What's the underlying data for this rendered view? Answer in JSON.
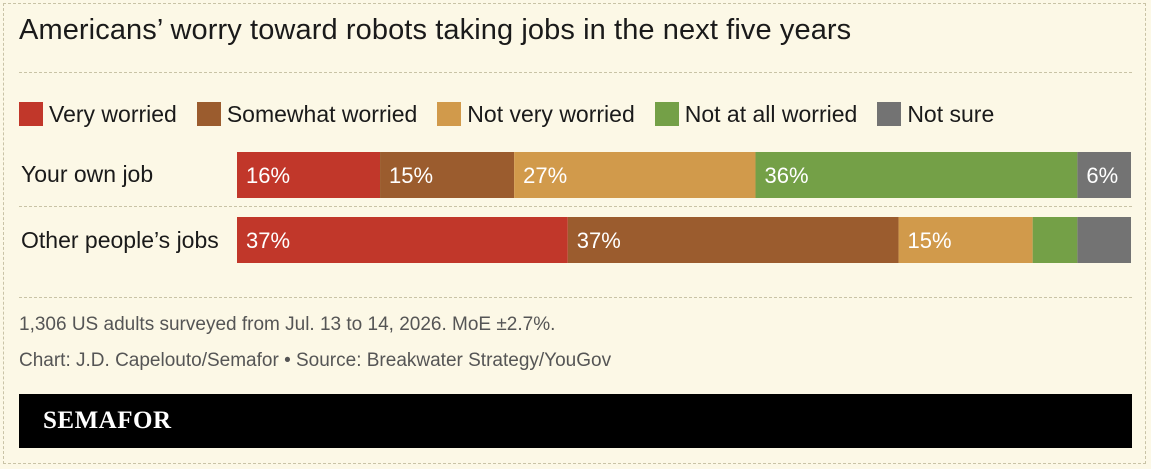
{
  "title": "Americans’ worry toward robots taking jobs in the next five years",
  "legend": [
    {
      "label": "Very worried",
      "color": "#c1372a"
    },
    {
      "label": "Somewhat worried",
      "color": "#9b5c2e"
    },
    {
      "label": "Not very worried",
      "color": "#d19a4b"
    },
    {
      "label": "Not at all worried",
      "color": "#74a047"
    },
    {
      "label": "Not sure",
      "color": "#737373"
    }
  ],
  "chart_data": {
    "type": "bar",
    "orientation": "horizontal",
    "stacked": true,
    "categories": [
      "Your own job",
      "Other people’s jobs"
    ],
    "series": [
      {
        "name": "Very worried",
        "values": [
          16,
          37
        ],
        "labels": [
          "16%",
          "37%"
        ],
        "color": "#c1372a"
      },
      {
        "name": "Somewhat worried",
        "values": [
          15,
          37
        ],
        "labels": [
          "15%",
          "37%"
        ],
        "color": "#9b5c2e"
      },
      {
        "name": "Not very worried",
        "values": [
          27,
          15
        ],
        "labels": [
          "27%",
          "15%"
        ],
        "color": "#d19a4b"
      },
      {
        "name": "Not at all worried",
        "values": [
          36,
          5
        ],
        "labels": [
          "36%",
          ""
        ],
        "color": "#74a047"
      },
      {
        "name": "Not sure",
        "values": [
          6,
          6
        ],
        "labels": [
          "6%",
          ""
        ],
        "color": "#737373"
      }
    ],
    "xlim": [
      0,
      100
    ],
    "grid": false,
    "legend_position": "top"
  },
  "footnotes": {
    "survey": "1,306 US adults surveyed from Jul. 13 to 14, 2026. MoE ±2.7%.",
    "credit": "Chart: J.D. Capelouto/Semafor • Source: Breakwater Strategy/YouGov"
  },
  "brand": "SEMAFOR"
}
